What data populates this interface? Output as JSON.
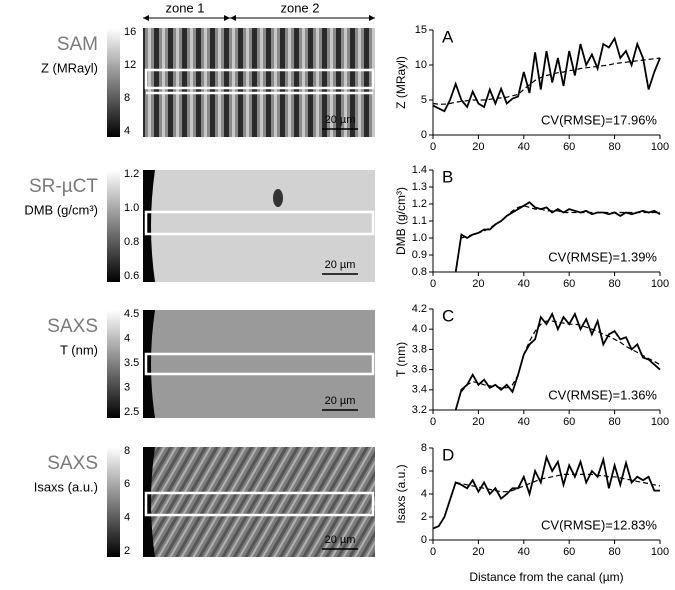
{
  "zones": [
    "zone 1",
    "zone 2"
  ],
  "image_panels": [
    {
      "technique": "SAM",
      "quantity": "Z (MRayl)",
      "colorbar_ticks": [
        16,
        12,
        8,
        4
      ],
      "scale_bar": "20 µm"
    },
    {
      "technique": "SR-µCT",
      "quantity": "DMB (g/cm³)",
      "colorbar_ticks": [
        "1.2",
        "1.0",
        "0.8",
        "0.6"
      ],
      "scale_bar": "20 µm"
    },
    {
      "technique": "SAXS",
      "quantity": "T (nm)",
      "colorbar_ticks": [
        4.5,
        4,
        3.5,
        3,
        2.5
      ],
      "scale_bar": "20 µm"
    },
    {
      "technique": "SAXS",
      "quantity": "Isaxs (a.u.)",
      "colorbar_ticks": [
        8,
        6,
        4,
        2
      ],
      "scale_bar": "20 µm"
    }
  ],
  "chart_data": [
    {
      "type": "line",
      "panel": "A",
      "ylabel": "Z (MRayl)",
      "annotation": "CV(RMSE)=17.96%",
      "x": [
        0,
        2.5,
        5,
        7.5,
        10,
        12.5,
        15,
        17.5,
        20,
        22.5,
        25,
        27.5,
        30,
        32.5,
        35,
        37.5,
        40,
        42.5,
        45,
        47.5,
        50,
        52.5,
        55,
        57.5,
        60,
        62.5,
        65,
        67.5,
        70,
        72.5,
        75,
        77.5,
        80,
        82.5,
        85,
        87.5,
        90,
        92.5,
        95,
        97.5,
        100
      ],
      "series": [
        {
          "color": "#000000",
          "dashed": false,
          "values": [
            4.2,
            3.8,
            3.4,
            5,
            7.3,
            5,
            4,
            6.2,
            4.5,
            4,
            6.5,
            4.5,
            6.6,
            4.5,
            5.2,
            5.5,
            9,
            6,
            11.8,
            6.5,
            12,
            7.5,
            11,
            7,
            12,
            8.5,
            13,
            10,
            11.5,
            9.5,
            13,
            12.5,
            13.8,
            11,
            12,
            10,
            13,
            11,
            6.5,
            9,
            11
          ]
        },
        {
          "color": "#000000",
          "dashed": true,
          "values": [
            4.5,
            4.4,
            4.4,
            4.5,
            4.7,
            4.8,
            4.9,
            5,
            5,
            5,
            5.1,
            5.2,
            5.3,
            5.4,
            5.6,
            5.8,
            6.5,
            7.2,
            7.8,
            8.2,
            8.5,
            8.7,
            8.9,
            9,
            9.2,
            9.3,
            9.5,
            9.6,
            9.7,
            9.8,
            9.9,
            10,
            10.2,
            10.3,
            10.4,
            10.5,
            10.6,
            10.7,
            10.8,
            10.9,
            11
          ]
        }
      ],
      "xlim": [
        0,
        100
      ],
      "xticks": [
        0,
        20,
        40,
        60,
        80,
        100
      ],
      "ylim": [
        0,
        15
      ],
      "yticks": [
        0,
        5,
        10,
        15
      ]
    },
    {
      "type": "line",
      "panel": "B",
      "ylabel": "DMB (g/cm³)",
      "annotation": "CV(RMSE)=1.39%",
      "x": [
        0,
        2.5,
        5,
        7.5,
        10,
        12.5,
        15,
        17.5,
        20,
        22.5,
        25,
        27.5,
        30,
        32.5,
        35,
        37.5,
        40,
        42.5,
        45,
        47.5,
        50,
        52.5,
        55,
        57.5,
        60,
        62.5,
        65,
        67.5,
        70,
        72.5,
        75,
        77.5,
        80,
        82.5,
        85,
        87.5,
        90,
        92.5,
        95,
        97.5,
        100
      ],
      "series": [
        {
          "color": "#000000",
          "dashed": false,
          "values": [
            null,
            null,
            null,
            null,
            0.8,
            1.02,
            1.0,
            1.02,
            1.03,
            1.05,
            1.05,
            1.08,
            1.1,
            1.13,
            1.15,
            1.17,
            1.19,
            1.21,
            1.18,
            1.17,
            1.18,
            1.15,
            1.17,
            1.15,
            1.17,
            1.16,
            1.15,
            1.16,
            1.14,
            1.15,
            1.15,
            1.14,
            1.15,
            1.13,
            1.15,
            1.14,
            1.15,
            1.16,
            1.15,
            1.16,
            1.14
          ]
        },
        {
          "color": "#000000",
          "dashed": true,
          "values": [
            null,
            null,
            null,
            null,
            null,
            1.0,
            1.01,
            1.02,
            1.03,
            1.04,
            1.06,
            1.08,
            1.1,
            1.13,
            1.16,
            1.18,
            1.19,
            1.18,
            1.17,
            1.17,
            1.16,
            1.16,
            1.16,
            1.15,
            1.15,
            1.15,
            1.15,
            1.15,
            1.15,
            1.15,
            1.15,
            1.15,
            1.15,
            1.15,
            1.15,
            1.15,
            1.15,
            1.15,
            1.15,
            1.15,
            1.15
          ]
        }
      ],
      "xlim": [
        0,
        100
      ],
      "xticks": [
        0,
        20,
        40,
        60,
        80,
        100
      ],
      "ylim": [
        0.8,
        1.4
      ],
      "yticks": [
        0.8,
        0.9,
        {
          "value": 1,
          "label": "1.0"
        },
        1.1,
        1.2,
        1.3,
        1.4
      ]
    },
    {
      "type": "line",
      "panel": "C",
      "ylabel": "T (nm)",
      "annotation": "CV(RMSE)=1.36%",
      "x": [
        0,
        2.5,
        5,
        7.5,
        10,
        12.5,
        15,
        17.5,
        20,
        22.5,
        25,
        27.5,
        30,
        32.5,
        35,
        37.5,
        40,
        42.5,
        45,
        47.5,
        50,
        52.5,
        55,
        57.5,
        60,
        62.5,
        65,
        67.5,
        70,
        72.5,
        75,
        77.5,
        80,
        82.5,
        85,
        87.5,
        90,
        92.5,
        95,
        97.5,
        100
      ],
      "series": [
        {
          "color": "#000000",
          "dashed": false,
          "values": [
            null,
            null,
            null,
            null,
            3.2,
            3.4,
            3.45,
            3.55,
            3.45,
            3.5,
            3.42,
            3.45,
            3.4,
            3.45,
            3.38,
            3.55,
            3.75,
            3.85,
            3.9,
            4.12,
            4.05,
            4.15,
            4.0,
            4.12,
            4.05,
            4.15,
            4.0,
            4.1,
            3.95,
            4.08,
            3.85,
            3.95,
            3.98,
            3.9,
            3.92,
            3.8,
            3.85,
            3.72,
            3.7,
            3.65,
            3.6
          ]
        },
        {
          "color": "#000000",
          "dashed": true,
          "values": [
            null,
            null,
            null,
            null,
            null,
            3.38,
            3.45,
            3.48,
            3.47,
            3.45,
            3.44,
            3.43,
            3.42,
            3.42,
            3.45,
            3.55,
            3.75,
            3.88,
            3.98,
            4.05,
            4.08,
            4.08,
            4.07,
            4.06,
            4.05,
            4.05,
            4.04,
            4.02,
            4.0,
            3.98,
            3.95,
            3.93,
            3.9,
            3.87,
            3.83,
            3.8,
            3.77,
            3.74,
            3.71,
            3.68,
            3.65
          ]
        }
      ],
      "xlim": [
        0,
        100
      ],
      "xticks": [
        0,
        20,
        40,
        60,
        80,
        100
      ],
      "ylim": [
        3.2,
        4.2
      ],
      "yticks": [
        3.2,
        3.4,
        3.6,
        3.8,
        {
          "value": 4,
          "label": "4.0"
        },
        4.2
      ]
    },
    {
      "type": "line",
      "panel": "D",
      "ylabel": "Isaxs (a.u.)",
      "xlabel": "Distance from the canal (µm)",
      "annotation": "CV(RMSE)=12.83%",
      "x": [
        0,
        2.5,
        5,
        7.5,
        10,
        12.5,
        15,
        17.5,
        20,
        22.5,
        25,
        27.5,
        30,
        32.5,
        35,
        37.5,
        40,
        42.5,
        45,
        47.5,
        50,
        52.5,
        55,
        57.5,
        60,
        62.5,
        65,
        67.5,
        70,
        72.5,
        75,
        77.5,
        80,
        82.5,
        85,
        87.5,
        90,
        92.5,
        95,
        97.5,
        100
      ],
      "series": [
        {
          "color": "#000000",
          "dashed": false,
          "values": [
            1,
            1.2,
            2,
            3.5,
            5,
            4.8,
            4.5,
            5.2,
            4.2,
            5,
            4,
            4.5,
            3.6,
            4,
            4.5,
            4.5,
            5.5,
            4,
            6,
            5,
            7.2,
            6,
            6.8,
            4.8,
            6.5,
            5.5,
            6.8,
            5,
            6,
            5.5,
            7,
            4.5,
            6.5,
            4.8,
            6.7,
            5,
            5.5,
            5.2,
            5.5,
            4.3,
            4.3
          ]
        },
        {
          "color": "#000000",
          "dashed": true,
          "values": [
            null,
            null,
            null,
            null,
            5,
            4.9,
            4.8,
            4.7,
            4.6,
            4.5,
            4.4,
            4.3,
            4.2,
            4.2,
            4.3,
            4.5,
            4.7,
            4.9,
            5.1,
            5.3,
            5.4,
            5.5,
            5.6,
            5.7,
            5.7,
            5.7,
            5.7,
            5.7,
            5.7,
            5.6,
            5.6,
            5.5,
            5.5,
            5.4,
            5.3,
            5.2,
            5.1,
            5.0,
            4.9,
            4.8,
            4.7
          ]
        }
      ],
      "xlim": [
        0,
        100
      ],
      "xticks": [
        0,
        20,
        40,
        60,
        80,
        100
      ],
      "ylim": [
        0,
        8
      ],
      "yticks": [
        0,
        2,
        4,
        6,
        8
      ]
    }
  ]
}
